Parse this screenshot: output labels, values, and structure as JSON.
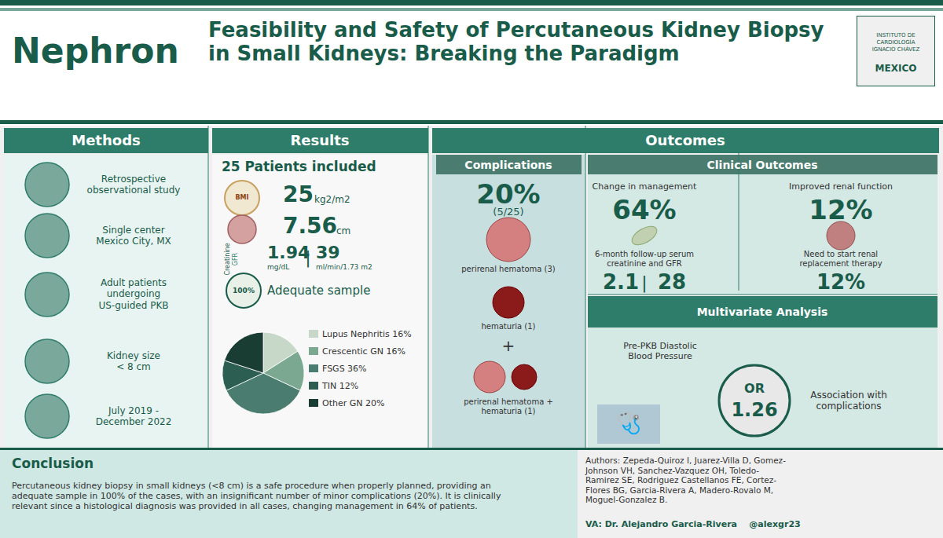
{
  "chart_data": {
    "type": "pie",
    "title": "Feasibility and Safety of Percutaneous Kidney Biopsy in Small Kidneys: Breaking the Paradigm",
    "categories": [
      "Lupus Nephritis 16%",
      "Crescentic GN 16%",
      "FSGS 36%",
      "TIN 12%",
      "Other GN 20%"
    ],
    "values": [
      16,
      16,
      36,
      12,
      20
    ],
    "colors": [
      "#c8d8c8",
      "#7aa890",
      "#4a7d6f",
      "#2c5f52",
      "#1a3d33"
    ],
    "legend": "right",
    "annotations": [
      "Nephron",
      "INSTITUTO DE",
      "CARDIOLOGÍA",
      "IGNACIO CHÁVEZ",
      "MEXICO",
      "Methods",
      "Results",
      "Outcomes",
      "Retrospective\nobservational study",
      "Single center\nMexico City, MX",
      "Adult patients\nundergoing\nUS-guided PKB",
      "Kidney size\n< 8 cm",
      "July 2019 -\nDecember 2022",
      "25 Patients included",
      "BMI",
      "25",
      "kg2/m2",
      "7.56",
      "cm",
      "Creatinine",
      "GFR",
      "1.94",
      "mg/dL",
      "|",
      "39",
      "ml/min/1.73 m2",
      "100%",
      "Adequate sample",
      "Complications",
      "20%",
      "(5/25)",
      "perirenal hematoma (3)",
      "hematuria (1)",
      "+",
      "perirenal hematoma +\nhematuria (1)",
      "Clinical Outcomes",
      "Change in management",
      "64%",
      "Improved renal function",
      "12%",
      "6-month follow-up serum\ncreatinine and GFR",
      "2.1",
      "|",
      "28",
      "Need to start renal\nreplacement therapy",
      "12%",
      "Multivariate Analysis",
      "Pre-PKB Diastolic\nBlood Pressure",
      "🩺",
      "OR",
      "1.26",
      "Association with\ncomplications",
      "Conclusion",
      "Percutaneous kidney biopsy in small kidneys (<8 cm) is a safe procedure when properly planned, providing an\nadequate sample in 100% of the cases, with an insignificant number of minor complications (20%). It is clinically\nrelevant since a histological diagnosis was provided in all cases, changing management in 64% of patients.",
      "Authors: Zepeda-Quiroz I, Juarez-Villa D, Gomez-\nJohnson VH, Sanchez-Vazquez OH, Toledo-\nRamirez SE, Rodriguez Castellanos FE, Cortez-\nFlores BG, Garcia-Rivera A, Madero-Rovalo M,\nMoguel-Gonzalez B.",
      "VA: Dr. Alejandro Garcia-Rivera    @alexgr23"
    ]
  }
}
